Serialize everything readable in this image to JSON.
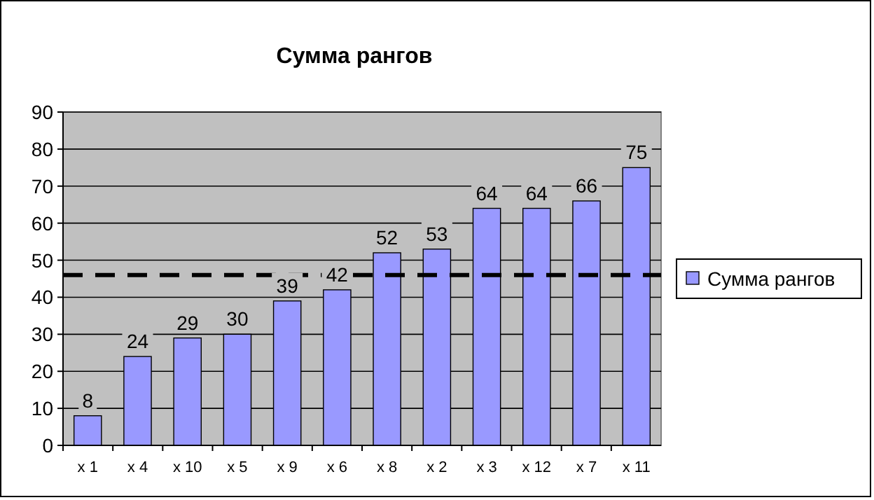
{
  "chart_data": {
    "type": "bar",
    "title": "Сумма рангов",
    "categories": [
      "x 1",
      "x 4",
      "x 10",
      "x 5",
      "x 9",
      "x 6",
      "x 8",
      "x 2",
      "x 3",
      "x 12",
      "x 7",
      "x 11"
    ],
    "series": [
      {
        "name": "Сумма рангов",
        "color": "#9999ff",
        "values": [
          8,
          24,
          29,
          30,
          39,
          42,
          52,
          53,
          64,
          64,
          66,
          75
        ]
      }
    ],
    "ylim": [
      0,
      90
    ],
    "yticks": [
      0,
      10,
      20,
      30,
      40,
      50,
      60,
      70,
      80,
      90
    ],
    "grid": "y",
    "legend": "right",
    "data_labels": true,
    "ref_lines": [
      {
        "axis": "y",
        "value": 46,
        "line_style": "dashed",
        "color": "#000000"
      }
    ]
  }
}
